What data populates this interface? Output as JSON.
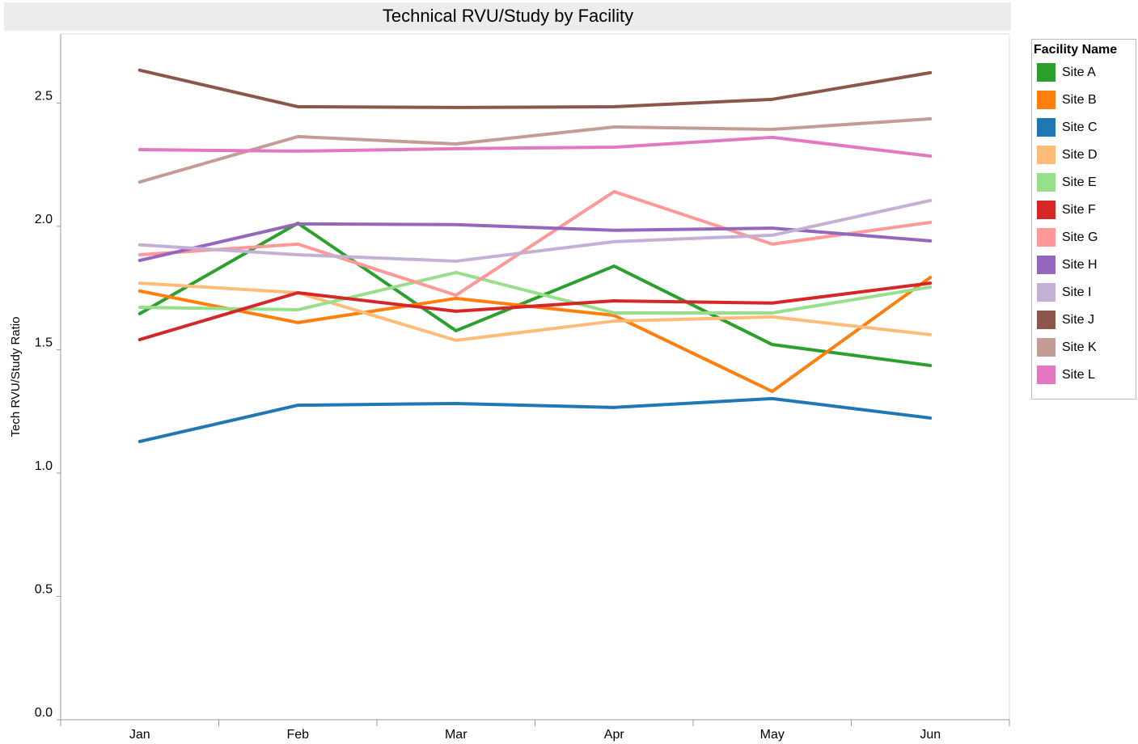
{
  "chart_data": {
    "type": "line",
    "title": "Technical RVU/Study by Facility",
    "ylabel": "Tech RVU/Study Ratio",
    "legend_title": "Facility Name",
    "legend": "right",
    "categories": [
      "Jan",
      "Feb",
      "Mar",
      "Apr",
      "May",
      "Jun"
    ],
    "ylim": [
      0,
      2.78
    ],
    "yticks": [
      {
        "value": 0,
        "label": "0.0"
      },
      0.5,
      {
        "value": 1,
        "label": "1.0"
      },
      1.5,
      {
        "value": 2,
        "label": "2.0"
      },
      2.5
    ],
    "series": [
      {
        "name": "Site A",
        "color": "#2ca02c",
        "values": [
          1.646,
          2.013,
          1.577,
          1.839,
          1.521,
          1.436
        ]
      },
      {
        "name": "Site B",
        "color": "#ff7f0e",
        "values": [
          1.738,
          1.61,
          1.708,
          1.639,
          1.331,
          1.793
        ]
      },
      {
        "name": "Site C",
        "color": "#1f77b4",
        "values": [
          1.128,
          1.275,
          1.282,
          1.266,
          1.302,
          1.223
        ]
      },
      {
        "name": "Site D",
        "color": "#ffbb78",
        "values": [
          1.77,
          1.731,
          1.538,
          1.616,
          1.633,
          1.561
        ]
      },
      {
        "name": "Site E",
        "color": "#98df8a",
        "values": [
          1.672,
          1.662,
          1.813,
          1.649,
          1.649,
          1.754
        ]
      },
      {
        "name": "Site F",
        "color": "#d62728",
        "values": [
          1.541,
          1.731,
          1.656,
          1.698,
          1.689,
          1.77
        ]
      },
      {
        "name": "Site G",
        "color": "#ff9896",
        "values": [
          1.885,
          1.928,
          1.721,
          2.141,
          1.928,
          2.016
        ]
      },
      {
        "name": "Site H",
        "color": "#9467bd",
        "values": [
          1.862,
          2.01,
          2.007,
          1.984,
          1.993,
          1.941
        ]
      },
      {
        "name": "Site I",
        "color": "#c5b0d5",
        "values": [
          1.925,
          1.885,
          1.859,
          1.938,
          1.964,
          2.105
        ]
      },
      {
        "name": "Site J",
        "color": "#8c564b",
        "values": [
          2.633,
          2.485,
          2.482,
          2.485,
          2.515,
          2.623
        ]
      },
      {
        "name": "Site K",
        "color": "#c49c94",
        "values": [
          2.18,
          2.364,
          2.334,
          2.403,
          2.393,
          2.436
        ]
      },
      {
        "name": "Site L",
        "color": "#e377c2",
        "values": [
          2.311,
          2.305,
          2.315,
          2.321,
          2.361,
          2.285
        ]
      }
    ]
  }
}
